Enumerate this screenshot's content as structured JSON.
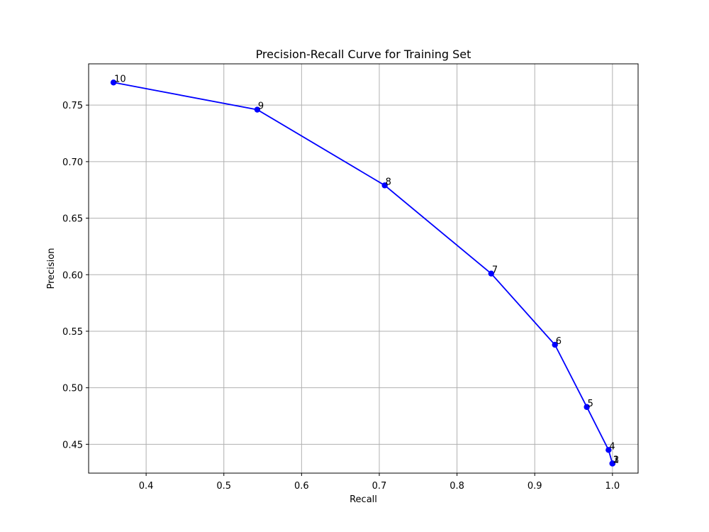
{
  "chart_data": {
    "type": "line",
    "title": "Precision-Recall Curve for Training Set",
    "xlabel": "Recall",
    "ylabel": "Precision",
    "xlim": [
      0.326,
      1.033
    ],
    "ylim": [
      0.4245,
      0.7865
    ],
    "xticks": [
      "0.4",
      "0.5",
      "0.6",
      "0.7",
      "0.8",
      "0.9",
      "1.0"
    ],
    "xtick_values": [
      0.4,
      0.5,
      0.6,
      0.7,
      0.8,
      0.9,
      1.0
    ],
    "yticks": [
      "0.45",
      "0.50",
      "0.55",
      "0.60",
      "0.65",
      "0.70",
      "0.75"
    ],
    "ytick_values": [
      0.45,
      0.5,
      0.55,
      0.6,
      0.65,
      0.7,
      0.75
    ],
    "grid": true,
    "line_color": "#0000ff",
    "series": [
      {
        "x": [
          1.0,
          1.0,
          1.0,
          0.995,
          0.967,
          0.926,
          0.844,
          0.707,
          0.543,
          0.358
        ],
        "y": [
          0.433,
          0.433,
          0.433,
          0.445,
          0.483,
          0.538,
          0.601,
          0.679,
          0.746,
          0.77
        ],
        "labels": [
          "1",
          "2",
          "3",
          "4",
          "5",
          "6",
          "7",
          "8",
          "9",
          "10"
        ]
      }
    ]
  }
}
